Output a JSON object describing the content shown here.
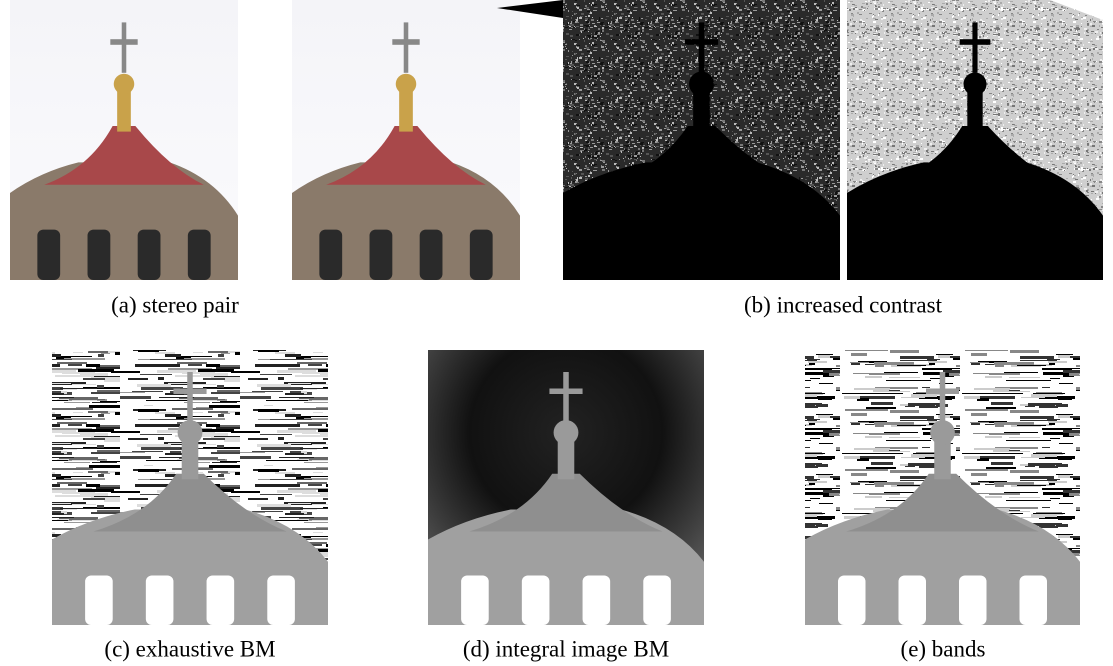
{
  "captions": [
    "(a) stereo pair",
    "(b) increased contrast",
    "(c) exhaustive BM",
    "(d) integral image BM",
    "(e) bands"
  ]
}
